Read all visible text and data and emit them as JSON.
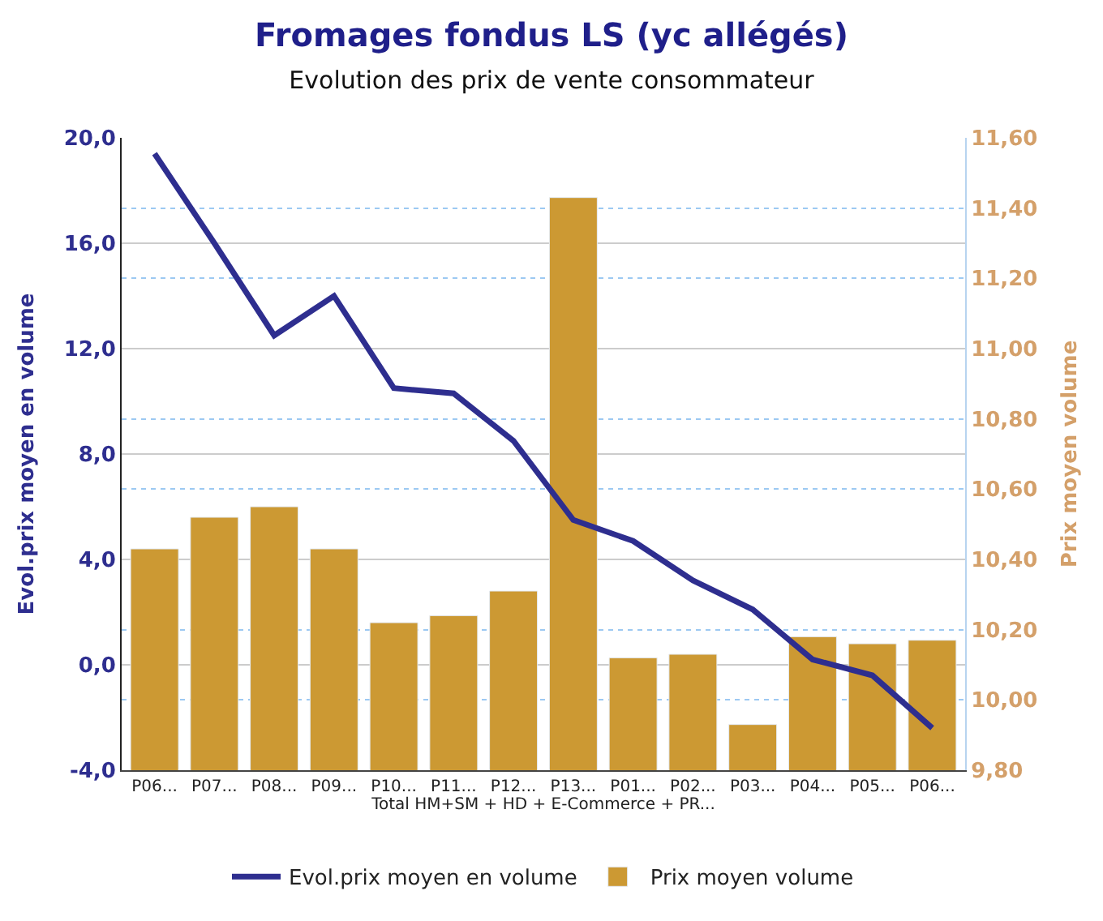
{
  "chart_data": {
    "type": "bar",
    "title": "Fromages fondus LS (yc allégés)",
    "subtitle": "Evolution des prix de vente consommateur",
    "xlabel": "Total HM+SM + HD + E-Commerce + PR...",
    "ylabel": "Evol.prix moyen en volume",
    "y2label": "Prix moyen volume",
    "categories": [
      "P06...",
      "P07...",
      "P08...",
      "P09...",
      "P10...",
      "P11...",
      "P12...",
      "P13...",
      "P01...",
      "P02...",
      "P03...",
      "P04...",
      "P05...",
      "P06..."
    ],
    "series": [
      {
        "name": "Evol.prix moyen en volume",
        "type": "line",
        "color": "#2e2e8f",
        "axis": "y",
        "values": [
          19.4,
          16.0,
          12.5,
          14.0,
          10.5,
          10.3,
          8.5,
          5.5,
          4.7,
          3.2,
          2.1,
          0.2,
          -0.4,
          -2.4
        ]
      },
      {
        "name": "Prix moyen volume",
        "color": "#cc9933",
        "axis": "y2",
        "values": [
          10.43,
          10.52,
          10.55,
          10.43,
          10.22,
          10.24,
          10.31,
          11.43,
          10.12,
          10.13,
          9.93,
          10.18,
          10.16,
          10.17
        ]
      }
    ],
    "ylim": [
      -4,
      20
    ],
    "yticks": [
      {
        "value": -4,
        "label": "-4,0"
      },
      {
        "value": 0,
        "label": "0,0"
      },
      {
        "value": 4,
        "label": "4,0"
      },
      {
        "value": 8,
        "label": "8,0"
      },
      {
        "value": 12,
        "label": "12,0"
      },
      {
        "value": 16,
        "label": "16,0"
      },
      {
        "value": 20,
        "label": "20,0"
      }
    ],
    "y2lim": [
      9.8,
      11.6
    ],
    "y2ticks": [
      {
        "value": 9.8,
        "label": "9,80"
      },
      {
        "value": 10.0,
        "label": "10,00"
      },
      {
        "value": 10.2,
        "label": "10,20"
      },
      {
        "value": 10.4,
        "label": "10,40"
      },
      {
        "value": 10.6,
        "label": "10,60"
      },
      {
        "value": 10.8,
        "label": "10,80"
      },
      {
        "value": 11.0,
        "label": "11,00"
      },
      {
        "value": 11.2,
        "label": "11,20"
      },
      {
        "value": 11.4,
        "label": "11,40"
      },
      {
        "value": 11.6,
        "label": "11,60"
      }
    ],
    "grid": true,
    "legend": "bottom",
    "marker": "none",
    "line_style": "solid"
  }
}
